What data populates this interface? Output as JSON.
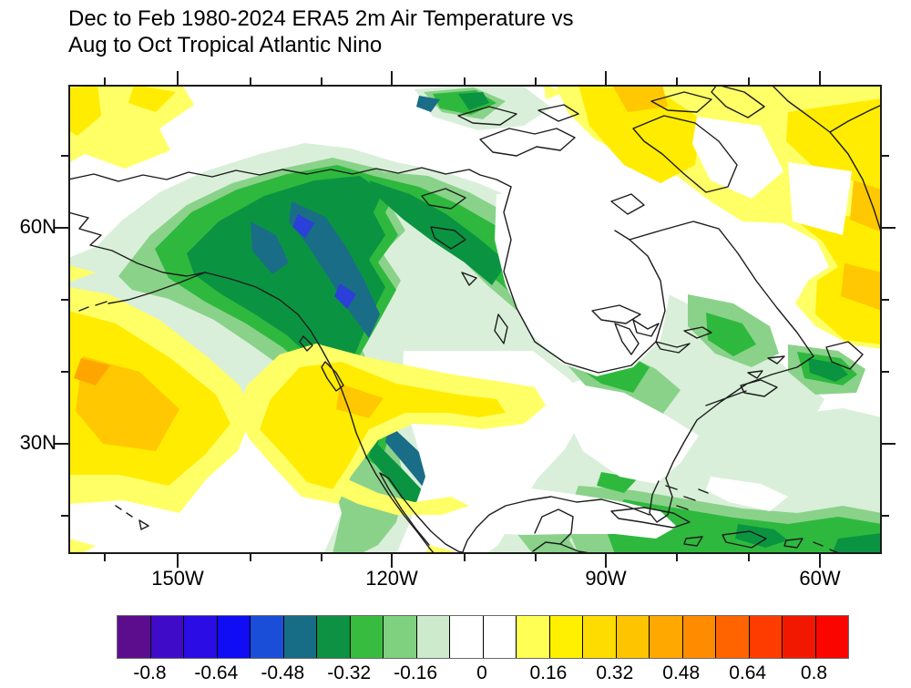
{
  "title": {
    "line1": "Dec to Feb 1980-2024 ERA5 2m Air Temperature vs",
    "line2": "Aug to Oct Tropical Atlantic Nino"
  },
  "axes": {
    "lat_labels": [
      "60N",
      "30N"
    ],
    "lon_labels": [
      "150W",
      "120W",
      "90W",
      "60W"
    ]
  },
  "colorbar": {
    "labels": [
      "-0.8",
      "-0.64",
      "-0.48",
      "-0.32",
      "-0.16",
      "0",
      "0.16",
      "0.32",
      "0.48",
      "0.64",
      "0.8"
    ],
    "colors": [
      "#5c0d8e",
      "#3f0bc8",
      "#2b0ce4",
      "#100cf4",
      "#1b4ed8",
      "#176c86",
      "#0d9142",
      "#38bc40",
      "#7fd07f",
      "#cdeacd",
      "#ffffff",
      "#ffffff",
      "#ffff54",
      "#fff000",
      "#ffdc00",
      "#ffc400",
      "#ffa800",
      "#ff8c00",
      "#ff6400",
      "#ff3c00",
      "#f21800",
      "#fb0500"
    ]
  },
  "map": {
    "palette": {
      "white": "#ffffff",
      "paleGreen": "#d9efd9",
      "lightGreen": "#8ad28a",
      "medGreen": "#2eb93e",
      "darkGreen": "#0a9442",
      "teal": "#1a6d86",
      "blue": "#2b3fd9",
      "ltYellow": "#ffff66",
      "yellow": "#ffec00",
      "gold": "#ffc800",
      "orange": "#ffa500",
      "coast": "#1c1c1c"
    }
  },
  "chart_data": {
    "type": "heatmap",
    "subtype": "filled_contour_correlation_map",
    "title": "Dec to Feb 1980-2024 ERA5 2m Air Temperature vs",
    "subtitle": "Aug to Oct Tropical Atlantic Nino",
    "variable": "Correlation of DJF ERA5 2m air temperature (1980-2024) with Aug-Oct Tropical Atlantic Nino index",
    "map_window": {
      "lon_west": "165W",
      "lon_east": "52W",
      "lat_south": "15N",
      "lat_north": "80N"
    },
    "x_tick_labels": [
      "150W",
      "120W",
      "90W",
      "60W"
    ],
    "y_tick_labels": [
      "60N",
      "30N"
    ],
    "minor_ticks_every_deg": 10,
    "contour_interval": 0.08,
    "levels_min": -0.88,
    "levels_max": 0.88,
    "colorbar_tick_labels": [
      -0.8,
      -0.64,
      -0.48,
      -0.32,
      -0.16,
      0,
      0.16,
      0.32,
      0.48,
      0.64,
      0.8
    ],
    "legend_position": "bottom",
    "grid": "off",
    "features": [
      {
        "area": "Alaska, Yukon and British Columbia coast",
        "approx_value": "-0.56 to -0.32"
      },
      {
        "area": "Western and central Canada toward Great Lakes",
        "approx_value": "-0.32 to -0.16"
      },
      {
        "area": "US west coast, Baja California and mainland Mexico",
        "approx_value": "-0.56 to -0.24"
      },
      {
        "area": "Northeast Pacific near Hawaii",
        "approx_value": "+0.16 to +0.32"
      },
      {
        "area": "South-central US, Texas and western Gulf coast",
        "approx_value": "+0.08 to +0.24"
      },
      {
        "area": "Canadian Arctic, Greenland, Labrador and Newfoundland",
        "approx_value": "+0.08 to +0.32"
      },
      {
        "area": "Caribbean and subtropical western Atlantic",
        "approx_value": "-0.32 to -0.08"
      },
      {
        "area": "Hudson Bay, central-eastern US seaboard",
        "approx_value": "-0.08 to +0.08"
      }
    ]
  }
}
